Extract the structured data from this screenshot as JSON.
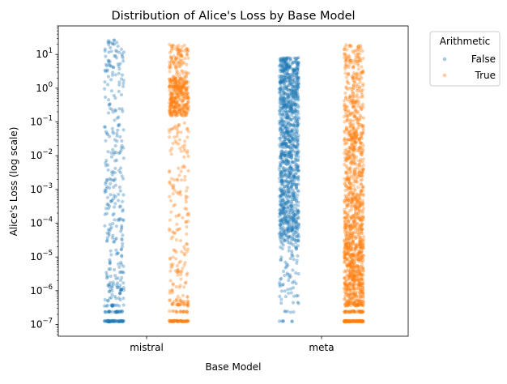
{
  "chart_data": {
    "type": "scatter",
    "subtype": "strip",
    "title": "Distribution of Alice's Loss by Base Model",
    "xlabel": "Base Model",
    "ylabel": "Alice's Loss (log scale)",
    "yscale": "log",
    "ylim": [
      4.5e-08,
      70
    ],
    "categories": [
      "mistral",
      "meta"
    ],
    "y_ticks": [
      {
        "value": 1e-07,
        "base": "10",
        "exp": "−7"
      },
      {
        "value": 1e-06,
        "base": "10",
        "exp": "−6"
      },
      {
        "value": 1e-05,
        "base": "10",
        "exp": "−5"
      },
      {
        "value": 0.0001,
        "base": "10",
        "exp": "−4"
      },
      {
        "value": 0.001,
        "base": "10",
        "exp": "−3"
      },
      {
        "value": 0.01,
        "base": "10",
        "exp": "−2"
      },
      {
        "value": 0.1,
        "base": "10",
        "exp": "−1"
      },
      {
        "value": 1,
        "base": "10",
        "exp": "0"
      },
      {
        "value": 10,
        "base": "10",
        "exp": "1"
      }
    ],
    "legend": {
      "title": "Arithmetic",
      "placement": "outside-top-right",
      "entries": [
        {
          "label": "False",
          "color": "#1f77b4"
        },
        {
          "label": "True",
          "color": "#ff7f0e"
        }
      ]
    },
    "series": [
      {
        "name": "False",
        "color": "#1f77b4",
        "groups": [
          {
            "category": "mistral",
            "min": 1.2e-07,
            "max": 27,
            "count": 400,
            "density": [
              {
                "lo": 1.2e-07,
                "hi": 1.3e-07,
                "w": 0.14
              },
              {
                "lo": 2.3e-07,
                "hi": 2.5e-07,
                "w": 0.07
              },
              {
                "lo": 3.5e-07,
                "hi": 3.8e-07,
                "w": 0.07
              },
              {
                "lo": 5e-07,
                "hi": 3e-06,
                "w": 0.1
              },
              {
                "lo": 3e-06,
                "hi": 0.005,
                "w": 0.3
              },
              {
                "lo": 0.005,
                "hi": 3,
                "w": 0.2
              },
              {
                "lo": 3,
                "hi": 27,
                "w": 0.12
              }
            ]
          },
          {
            "category": "meta",
            "min": 1.2e-07,
            "max": 8,
            "count": 1200,
            "density": [
              {
                "lo": 1.2e-07,
                "hi": 1.3e-07,
                "w": 0.005
              },
              {
                "lo": 2.3e-07,
                "hi": 2.5e-07,
                "w": 0.005
              },
              {
                "lo": 4e-07,
                "hi": 3e-05,
                "w": 0.05
              },
              {
                "lo": 3e-05,
                "hi": 0.01,
                "w": 0.4
              },
              {
                "lo": 0.01,
                "hi": 1,
                "w": 0.35
              },
              {
                "lo": 1,
                "hi": 8,
                "w": 0.19
              }
            ]
          }
        ]
      },
      {
        "name": "True",
        "color": "#ff7f0e",
        "groups": [
          {
            "category": "mistral",
            "min": 1.2e-07,
            "max": 20,
            "count": 700,
            "density": [
              {
                "lo": 1.2e-07,
                "hi": 1.3e-07,
                "w": 0.08
              },
              {
                "lo": 2.3e-07,
                "hi": 2.5e-07,
                "w": 0.04
              },
              {
                "lo": 3.5e-07,
                "hi": 5e-07,
                "w": 0.04
              },
              {
                "lo": 5e-07,
                "hi": 0.1,
                "w": 0.24
              },
              {
                "lo": 0.15,
                "hi": 2,
                "w": 0.45
              },
              {
                "lo": 2,
                "hi": 20,
                "w": 0.15
              }
            ]
          },
          {
            "category": "meta",
            "min": 1.2e-07,
            "max": 20,
            "count": 1400,
            "density": [
              {
                "lo": 1.2e-07,
                "hi": 1.3e-07,
                "w": 0.05
              },
              {
                "lo": 2.3e-07,
                "hi": 2.5e-07,
                "w": 0.04
              },
              {
                "lo": 3.5e-07,
                "hi": 5e-07,
                "w": 0.04
              },
              {
                "lo": 5e-07,
                "hi": 0.0001,
                "w": 0.4
              },
              {
                "lo": 0.0001,
                "hi": 0.1,
                "w": 0.32
              },
              {
                "lo": 0.1,
                "hi": 20,
                "w": 0.15
              }
            ]
          }
        ]
      }
    ]
  }
}
